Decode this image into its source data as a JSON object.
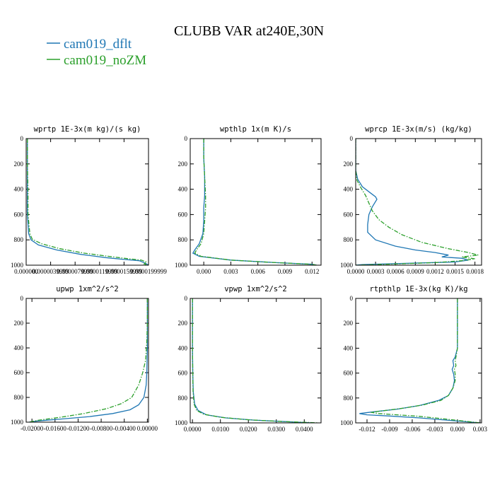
{
  "figure": {
    "title": "CLUBB VAR at240E,30N",
    "legend": [
      {
        "label": "cam019_dflt",
        "color": "#1f77b4",
        "dash": "solid"
      },
      {
        "label": "cam019_noZM",
        "color": "#2ca02c",
        "dash": "dashdot"
      }
    ]
  },
  "chart_data": [
    {
      "type": "line",
      "title": "wprtp  1E-3x(m kg)/(s kg)",
      "xlim": [
        0,
        2e-05
      ],
      "ylim": [
        1000,
        0
      ],
      "xticks": [
        0,
        4e-06,
        8e-06,
        1.2e-05,
        1.6e-05,
        2e-05
      ],
      "xtick_labels": [
        "0.000000",
        "0.0000039999",
        "0.0000079999",
        "0.0000119999",
        "0.0000159999",
        "0.0000199999"
      ],
      "yticks": [
        0,
        200,
        400,
        600,
        800,
        1000
      ],
      "ytick_labels": [
        "0",
        "200",
        "400",
        "600",
        "800",
        "1000"
      ],
      "series": [
        {
          "name": "cam019_dflt",
          "points": [
            [
              2e-07,
              0
            ],
            [
              2e-07,
              200
            ],
            [
              2e-07,
              400
            ],
            [
              2e-07,
              600
            ],
            [
              4e-07,
              750
            ],
            [
              8e-07,
              800
            ],
            [
              2e-06,
              840
            ],
            [
              5e-06,
              880
            ],
            [
              9e-06,
              915
            ],
            [
              1.3e-05,
              940
            ],
            [
              1.6e-05,
              955
            ],
            [
              1.85e-05,
              965
            ],
            [
              1.95e-05,
              985
            ],
            [
              2e-05,
              1000
            ]
          ]
        },
        {
          "name": "cam019_noZM",
          "points": [
            [
              2e-07,
              0
            ],
            [
              2e-07,
              200
            ],
            [
              3e-07,
              400
            ],
            [
              3e-07,
              600
            ],
            [
              6e-07,
              750
            ],
            [
              1e-06,
              795
            ],
            [
              2.5e-06,
              830
            ],
            [
              5.5e-06,
              870
            ],
            [
              9.5e-06,
              905
            ],
            [
              1.35e-05,
              930
            ],
            [
              1.65e-05,
              948
            ],
            [
              1.88e-05,
              960
            ],
            [
              1.97e-05,
              975
            ],
            [
              1.93e-05,
              990
            ],
            [
              2e-05,
              1000
            ]
          ]
        }
      ]
    },
    {
      "type": "line",
      "title": "wpthlp  1x(m K)/s",
      "xlim": [
        -0.0015,
        0.013
      ],
      "ylim": [
        1000,
        0
      ],
      "xticks": [
        0,
        0.003,
        0.006,
        0.009,
        0.012
      ],
      "xtick_labels": [
        "0.000",
        "0.003",
        "0.006",
        "0.009",
        "0.012"
      ],
      "yticks": [
        0,
        200,
        400,
        600,
        800,
        1000
      ],
      "ytick_labels": [
        "0",
        "200",
        "400",
        "600",
        "800",
        "1000"
      ],
      "series": [
        {
          "name": "cam019_dflt",
          "points": [
            [
              0.0,
              0
            ],
            [
              0.0,
              150
            ],
            [
              0.0001,
              300
            ],
            [
              0.0001,
              450
            ],
            [
              0.0,
              550
            ],
            [
              0.0,
              650
            ],
            [
              -0.0001,
              750
            ],
            [
              -0.0005,
              830
            ],
            [
              -0.001,
              880
            ],
            [
              -0.0012,
              905
            ],
            [
              -0.0005,
              930
            ],
            [
              0.003,
              960
            ],
            [
              0.008,
              980
            ],
            [
              0.012,
              993
            ],
            [
              0.0125,
              1000
            ]
          ]
        },
        {
          "name": "cam019_noZM",
          "points": [
            [
              0.0,
              0
            ],
            [
              0.0,
              150
            ],
            [
              0.0001,
              300
            ],
            [
              0.0002,
              450
            ],
            [
              0.0002,
              550
            ],
            [
              0.0001,
              650
            ],
            [
              0.0,
              750
            ],
            [
              -0.0003,
              830
            ],
            [
              -0.0008,
              880
            ],
            [
              -0.001,
              905
            ],
            [
              -0.0003,
              930
            ],
            [
              0.003,
              960
            ],
            [
              0.008,
              980
            ],
            [
              0.012,
              993
            ],
            [
              0.0125,
              1000
            ]
          ]
        }
      ]
    },
    {
      "type": "line",
      "title": "wprcp  1E-3x(m/s) (kg/kg)",
      "xlim": [
        0,
        0.0019
      ],
      "ylim": [
        1000,
        0
      ],
      "xticks": [
        0,
        0.0003,
        0.0006,
        0.0009,
        0.0012,
        0.0015,
        0.0018
      ],
      "xtick_labels": [
        "0.0000",
        "0.0003",
        "0.0006",
        "0.0009",
        "0.0012",
        "0.0015",
        "0.0018"
      ],
      "yticks": [
        0,
        200,
        400,
        600,
        800,
        1000
      ],
      "ytick_labels": [
        "0",
        "200",
        "400",
        "600",
        "800",
        "1000"
      ],
      "series": [
        {
          "name": "cam019_dflt",
          "points": [
            [
              0,
              0
            ],
            [
              0,
              250
            ],
            [
              3e-05,
              320
            ],
            [
              0.0001,
              380
            ],
            [
              0.0002,
              420
            ],
            [
              0.0003,
              460
            ],
            [
              0.00032,
              480
            ],
            [
              0.00025,
              540
            ],
            [
              0.0002,
              600
            ],
            [
              0.00018,
              680
            ],
            [
              0.00018,
              740
            ],
            [
              0.0003,
              800
            ],
            [
              0.0006,
              850
            ],
            [
              0.0009,
              880
            ],
            [
              0.0012,
              900
            ],
            [
              0.0014,
              920
            ],
            [
              0.0013,
              935
            ],
            [
              0.0016,
              945
            ],
            [
              0.0017,
              960
            ],
            [
              0.0015,
              975
            ],
            [
              0.0008,
              985
            ],
            [
              0.0001,
              995
            ],
            [
              0,
              1000
            ]
          ]
        },
        {
          "name": "cam019_noZM",
          "points": [
            [
              0,
              0
            ],
            [
              0,
              250
            ],
            [
              2e-05,
              330
            ],
            [
              8e-05,
              390
            ],
            [
              0.00015,
              450
            ],
            [
              0.0002,
              510
            ],
            [
              0.00025,
              570
            ],
            [
              0.00035,
              640
            ],
            [
              0.0005,
              700
            ],
            [
              0.0007,
              760
            ],
            [
              0.001,
              820
            ],
            [
              0.0014,
              870
            ],
            [
              0.0017,
              900
            ],
            [
              0.00185,
              920
            ],
            [
              0.0016,
              935
            ],
            [
              0.0018,
              950
            ],
            [
              0.0016,
              965
            ],
            [
              0.0012,
              980
            ],
            [
              0.0005,
              992
            ],
            [
              0,
              1000
            ]
          ]
        }
      ]
    },
    {
      "type": "line",
      "title": "upwp  1xm^2/s^2",
      "xlim": [
        -0.021,
        0.0002
      ],
      "ylim": [
        1000,
        0
      ],
      "xticks": [
        -0.02,
        -0.016,
        -0.012,
        -0.008,
        -0.004,
        0
      ],
      "xtick_labels": [
        "-0.02000",
        "-0.01600",
        "-0.01200",
        "-0.00800",
        "-0.00400",
        "0.00000"
      ],
      "yticks": [
        0,
        200,
        400,
        600,
        800,
        1000
      ],
      "ytick_labels": [
        "0",
        "200",
        "400",
        "600",
        "800",
        "1000"
      ],
      "series": [
        {
          "name": "cam019_dflt",
          "points": [
            [
              0,
              0
            ],
            [
              0,
              200
            ],
            [
              0,
              400
            ],
            [
              -0.0001,
              600
            ],
            [
              -0.0002,
              700
            ],
            [
              -0.0006,
              800
            ],
            [
              -0.0015,
              860
            ],
            [
              -0.003,
              900
            ],
            [
              -0.006,
              930
            ],
            [
              -0.01,
              955
            ],
            [
              -0.015,
              975
            ],
            [
              -0.019,
              990
            ],
            [
              -0.0205,
              1000
            ]
          ]
        },
        {
          "name": "cam019_noZM",
          "points": [
            [
              0,
              0
            ],
            [
              0,
              200
            ],
            [
              -0.0001,
              350
            ],
            [
              -0.0003,
              500
            ],
            [
              -0.0008,
              600
            ],
            [
              -0.0015,
              700
            ],
            [
              -0.0027,
              800
            ],
            [
              -0.0045,
              850
            ],
            [
              -0.007,
              890
            ],
            [
              -0.011,
              930
            ],
            [
              -0.015,
              960
            ],
            [
              -0.019,
              985
            ],
            [
              -0.0205,
              1000
            ]
          ]
        }
      ]
    },
    {
      "type": "line",
      "title": "vpwp  1xm^2/s^2",
      "xlim": [
        -0.0008,
        0.046
      ],
      "ylim": [
        1000,
        0
      ],
      "xticks": [
        0,
        0.01,
        0.02,
        0.03,
        0.04
      ],
      "xtick_labels": [
        "0.0000",
        "0.0100",
        "0.0200",
        "0.0300",
        "0.0400"
      ],
      "yticks": [
        0,
        200,
        400,
        600,
        800,
        1000
      ],
      "ytick_labels": [
        "0",
        "200",
        "400",
        "600",
        "800",
        "1000"
      ],
      "series": [
        {
          "name": "cam019_dflt",
          "points": [
            [
              0,
              0
            ],
            [
              0,
              200
            ],
            [
              0,
              400
            ],
            [
              0.0001,
              600
            ],
            [
              0.0003,
              750
            ],
            [
              0.0008,
              850
            ],
            [
              0.002,
              900
            ],
            [
              0.005,
              935
            ],
            [
              0.012,
              960
            ],
            [
              0.022,
              978
            ],
            [
              0.033,
              990
            ],
            [
              0.043,
              1000
            ]
          ]
        },
        {
          "name": "cam019_noZM",
          "points": [
            [
              0,
              0
            ],
            [
              0,
              200
            ],
            [
              0,
              400
            ],
            [
              0.0001,
              600
            ],
            [
              0.0002,
              750
            ],
            [
              0.0006,
              850
            ],
            [
              0.0015,
              900
            ],
            [
              0.004,
              930
            ],
            [
              0.01,
              955
            ],
            [
              0.02,
              975
            ],
            [
              0.031,
              988
            ],
            [
              0.042,
              997
            ],
            [
              0.045,
              1000
            ]
          ]
        }
      ]
    },
    {
      "type": "line",
      "title": "rtpthlp  1E-3x(kg K)/kg",
      "xlim": [
        -0.0135,
        0.0032
      ],
      "ylim": [
        1000,
        0
      ],
      "xticks": [
        -0.012,
        -0.009,
        -0.006,
        -0.003,
        0,
        0.003
      ],
      "xtick_labels": [
        "-0.012",
        "-0.009",
        "-0.006",
        "-0.003",
        "0.000",
        "0.003"
      ],
      "yticks": [
        0,
        200,
        400,
        600,
        800,
        1000
      ],
      "ytick_labels": [
        "0",
        "200",
        "400",
        "600",
        "800",
        "1000"
      ],
      "series": [
        {
          "name": "cam019_dflt",
          "points": [
            [
              0,
              0
            ],
            [
              0,
              200
            ],
            [
              0,
              400
            ],
            [
              -0.0003,
              470
            ],
            [
              -0.0006,
              500
            ],
            [
              -0.0005,
              540
            ],
            [
              -0.0007,
              570
            ],
            [
              -0.0005,
              610
            ],
            [
              -0.0004,
              660
            ],
            [
              -0.0006,
              720
            ],
            [
              -0.0012,
              780
            ],
            [
              -0.0025,
              820
            ],
            [
              -0.005,
              860
            ],
            [
              -0.008,
              890
            ],
            [
              -0.011,
              910
            ],
            [
              -0.013,
              925
            ],
            [
              -0.012,
              935
            ],
            [
              -0.009,
              945
            ],
            [
              -0.005,
              960
            ],
            [
              -0.001,
              980
            ],
            [
              0.002,
              995
            ],
            [
              0.003,
              1000
            ]
          ]
        },
        {
          "name": "cam019_noZM",
          "points": [
            [
              0,
              0
            ],
            [
              0,
              200
            ],
            [
              0,
              400
            ],
            [
              -0.0002,
              470
            ],
            [
              -0.0003,
              500
            ],
            [
              -0.0002,
              540
            ],
            [
              -0.0004,
              570
            ],
            [
              -0.0003,
              610
            ],
            [
              -0.0003,
              660
            ],
            [
              -0.0006,
              720
            ],
            [
              -0.0012,
              780
            ],
            [
              -0.0022,
              820
            ],
            [
              -0.0045,
              855
            ],
            [
              -0.007,
              880
            ],
            [
              -0.0095,
              900
            ],
            [
              -0.0115,
              915
            ],
            [
              -0.0105,
              925
            ],
            [
              -0.008,
              935
            ],
            [
              -0.005,
              948
            ],
            [
              -0.0015,
              970
            ],
            [
              0.002,
              993
            ],
            [
              0.003,
              1000
            ]
          ]
        }
      ]
    }
  ]
}
